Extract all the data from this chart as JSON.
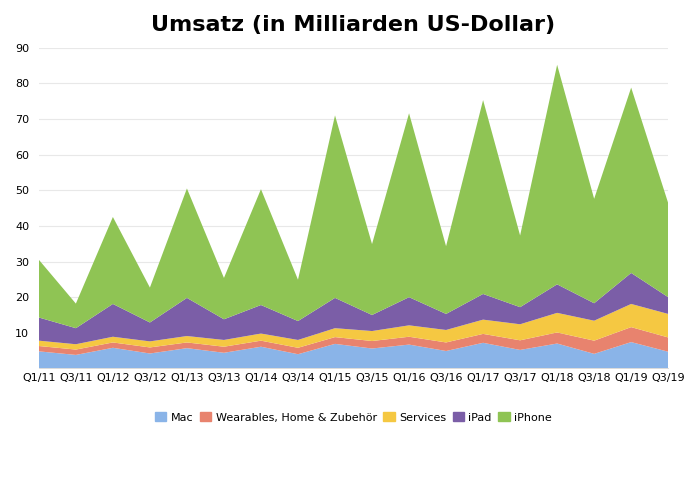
{
  "title": "Umsatz (in Milliarden US-Dollar)",
  "x_labels": [
    "Q1/11",
    "Q3/11",
    "Q1/12",
    "Q3/12",
    "Q1/13",
    "Q3/13",
    "Q1/14",
    "Q3/14",
    "Q1/15",
    "Q3/15",
    "Q1/16",
    "Q3/16",
    "Q1/17",
    "Q3/17",
    "Q1/18",
    "Q3/18",
    "Q1/19",
    "Q3/19"
  ],
  "Mac": [
    4.8,
    3.8,
    5.8,
    4.2,
    5.7,
    4.4,
    6.1,
    4.0,
    6.9,
    5.6,
    6.7,
    4.9,
    7.2,
    5.2,
    7.0,
    4.1,
    7.4,
    4.7
  ],
  "Wearables": [
    1.5,
    1.5,
    1.5,
    1.7,
    1.6,
    1.7,
    1.7,
    1.8,
    1.9,
    2.1,
    2.2,
    2.4,
    2.5,
    2.7,
    3.1,
    3.7,
    4.2,
    4.0
  ],
  "Services": [
    1.5,
    1.5,
    1.6,
    1.7,
    1.8,
    1.9,
    2.0,
    2.2,
    2.5,
    2.8,
    3.2,
    3.5,
    4.0,
    4.5,
    5.5,
    5.6,
    6.5,
    6.6
  ],
  "iPad": [
    6.5,
    4.5,
    9.2,
    5.3,
    10.7,
    5.8,
    8.0,
    5.3,
    8.5,
    4.5,
    7.9,
    4.5,
    7.2,
    4.8,
    8.0,
    4.9,
    8.7,
    4.7
  ],
  "iPhone": [
    16.2,
    6.9,
    24.4,
    9.8,
    30.7,
    11.6,
    32.5,
    11.6,
    51.2,
    19.9,
    51.6,
    19.0,
    54.4,
    20.1,
    61.6,
    29.3,
    52.0,
    26.4
  ],
  "colors": {
    "Mac": "#8ab4e8",
    "Wearables": "#e8836e",
    "Services": "#f5c842",
    "iPad": "#7b5ea7",
    "iPhone": "#8fc454"
  },
  "ylim": [
    0,
    90
  ],
  "yticks": [
    10,
    20,
    30,
    40,
    50,
    60,
    70,
    80,
    90
  ],
  "background_color": "#ffffff",
  "grid_color": "#e8e8e8",
  "title_fontsize": 16,
  "tick_fontsize": 8,
  "legend_labels": [
    "Mac",
    "Wearables, Home & Zubehör",
    "Services",
    "iPad",
    "iPhone"
  ]
}
